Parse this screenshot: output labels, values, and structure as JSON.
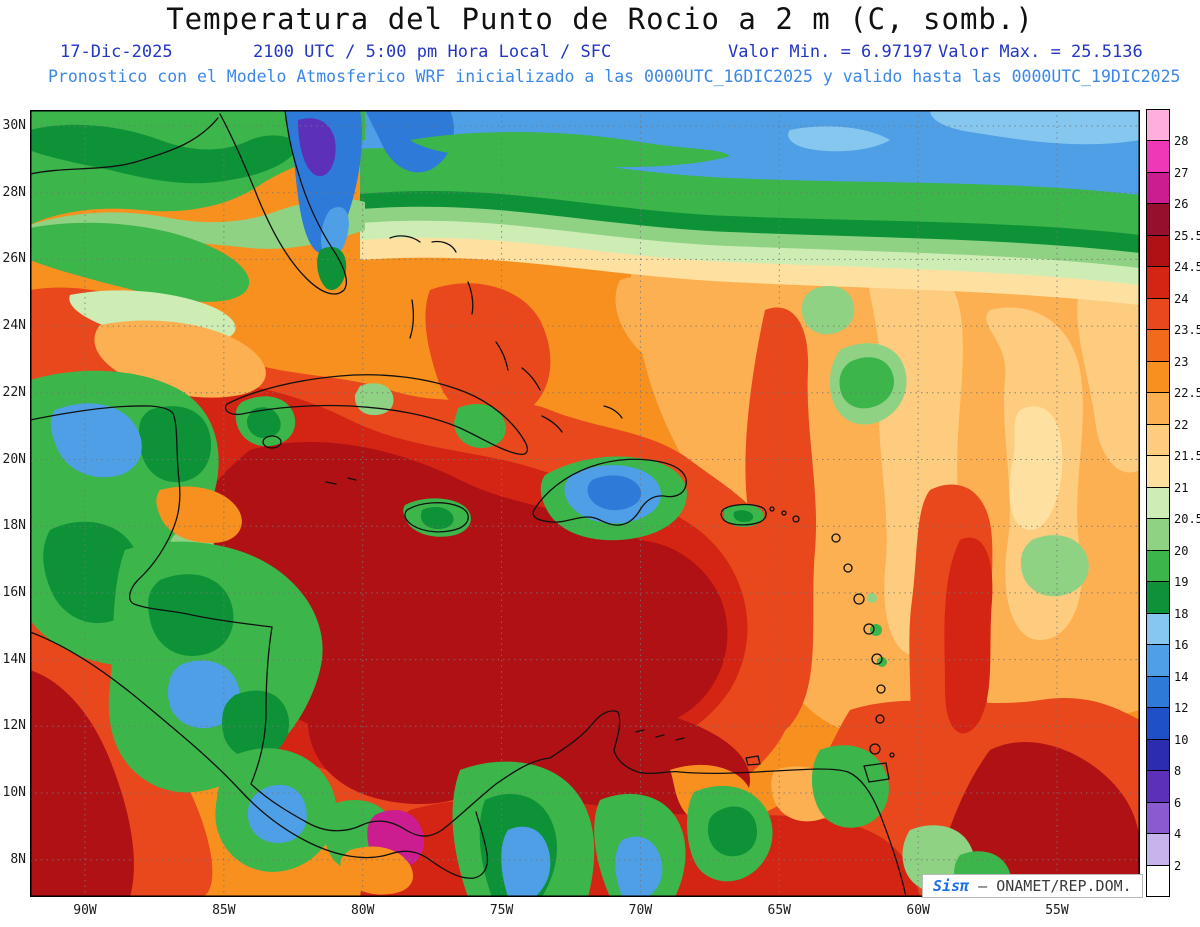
{
  "header": {
    "title": "Temperatura del Punto de Rocio a 2 m (C, somb.)",
    "date": "17-Dic-2025",
    "time": "2100 UTC / 5:00 pm Hora Local / SFC",
    "value_min_label": "Valor Min. = 6.97197",
    "value_max_label": "Valor Max. = 25.5136",
    "model_line": "Pronostico con el Modelo Atmosferico WRF inicializado a las 0000UTC_16DIC2025 y valido hasta las  0000UTC_19DIC2025"
  },
  "colors": {
    "title_text": "#111111",
    "info_line": "#2336c4",
    "model_line": "#3b87e8"
  },
  "axes": {
    "lat_ticks": [
      "30N",
      "28N",
      "26N",
      "24N",
      "22N",
      "20N",
      "18N",
      "16N",
      "14N",
      "12N",
      "10N",
      "8N"
    ],
    "lon_ticks": [
      "90W",
      "85W",
      "80W",
      "75W",
      "70W",
      "65W",
      "60W",
      "55W"
    ]
  },
  "colorbar": {
    "labels_top_to_bottom": [
      "28",
      "27",
      "26",
      "25.5",
      "24.5",
      "24",
      "23.5",
      "23",
      "22.5",
      "22",
      "21.5",
      "21",
      "20.5",
      "20",
      "19",
      "18",
      "16",
      "14",
      "12",
      "10",
      "8",
      "6",
      "4",
      "2"
    ],
    "colors_top_to_bottom": [
      "#ffaede",
      "#ee38b8",
      "#cb1d90",
      "#96102e",
      "#b01115",
      "#d42414",
      "#e8481c",
      "#f26b1d",
      "#f89020",
      "#fcb052",
      "#fdcc7e",
      "#fee0a0",
      "#cdedb5",
      "#8fd284",
      "#3cb54a",
      "#0e9238",
      "#86c7f0",
      "#4f9fe6",
      "#2e7ad8",
      "#2050c8",
      "#2c2cb0",
      "#5c30b8",
      "#8a5ad0",
      "#c8b4ec",
      "#ffffff"
    ]
  },
  "branding": {
    "product": "Sisπ",
    "dash": "–",
    "org": "ONAMET/REP.DOM."
  },
  "chart_data": {
    "type": "heatmap",
    "title": "Temperatura del Punto de Rocio a 2 m (C, somb.)",
    "valid": "17-Dic-2025 2100 UTC / 5:00 pm Hora Local / SFC",
    "value_min": 6.97197,
    "value_max": 25.5136,
    "initialized": "0000UTC_16DIC2025",
    "valid_until": "0000UTC_19DIC2025",
    "levels_c": [
      2,
      4,
      6,
      8,
      10,
      12,
      14,
      16,
      18,
      19,
      20,
      20.5,
      21,
      21.5,
      22,
      22.5,
      23,
      23.5,
      24,
      24.5,
      25.5,
      26,
      27,
      28
    ],
    "palette_bottom_to_top": [
      "#ffffff",
      "#c8b4ec",
      "#8a5ad0",
      "#5c30b8",
      "#2c2cb0",
      "#2050c8",
      "#2e7ad8",
      "#4f9fe6",
      "#86c7f0",
      "#0e9238",
      "#3cb54a",
      "#8fd284",
      "#cdedb5",
      "#fee0a0",
      "#fdcc7e",
      "#fcb052",
      "#f89020",
      "#f26b1d",
      "#e8481c",
      "#d42414",
      "#b01115",
      "#96102e",
      "#cb1d90",
      "#ee38b8",
      "#ffaede"
    ],
    "lat_ticks": [
      "30N",
      "28N",
      "26N",
      "24N",
      "22N",
      "20N",
      "18N",
      "16N",
      "14N",
      "12N",
      "10N",
      "8N"
    ],
    "lon_ticks": [
      "90W",
      "85W",
      "80W",
      "75W",
      "70W",
      "65W",
      "60W",
      "55W"
    ],
    "legend_position": "right",
    "grid": true
  }
}
